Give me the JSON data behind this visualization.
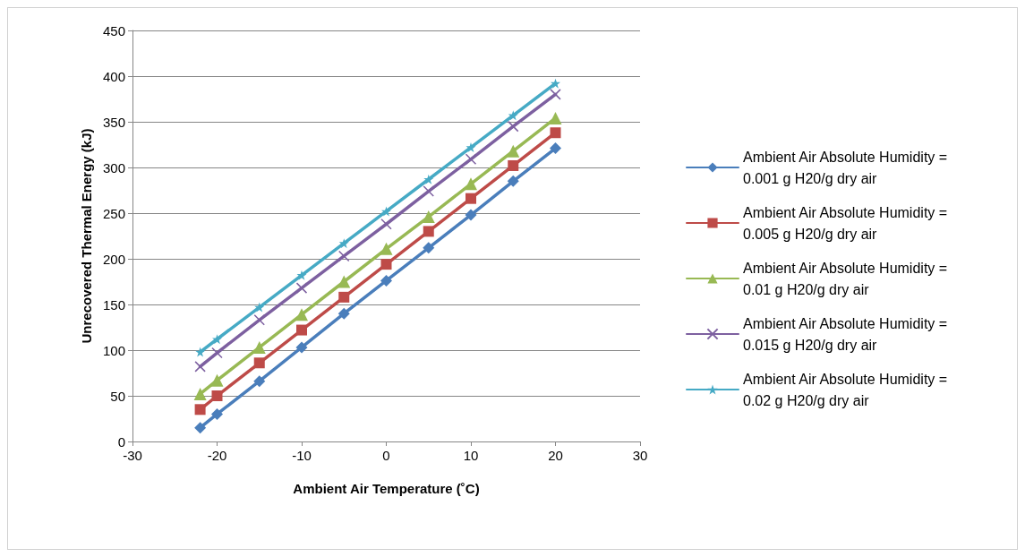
{
  "chart_data": {
    "type": "line",
    "xlabel": "Ambient Air Temperature (˚C)",
    "ylabel": "Unrecovered Thermal Energy (kJ)",
    "x": [
      -22,
      -20,
      -15,
      -10,
      -5,
      0,
      5,
      10,
      15,
      20
    ],
    "series": [
      {
        "name": "Ambient Air Absolute Humidity = 0.001 g H20/g dry air",
        "color": "#4a7ebb",
        "marker": "diamond",
        "values": [
          15,
          30,
          66,
          103,
          140,
          176,
          212,
          248,
          285,
          321
        ]
      },
      {
        "name": "Ambient Air Absolute Humidity = 0.005 g H20/g dry air",
        "color": "#be4b48",
        "marker": "square",
        "values": [
          35,
          50,
          86,
          122,
          158,
          194,
          230,
          266,
          302,
          338
        ]
      },
      {
        "name": "Ambient Air Absolute Humidity = 0.01 g H20/g dry air",
        "color": "#98b954",
        "marker": "triangle",
        "values": [
          52,
          67,
          103,
          139,
          175,
          211,
          246,
          282,
          318,
          354
        ]
      },
      {
        "name": "Ambient Air Absolute Humidity = 0.015 g H20/g dry air",
        "color": "#7d60a0",
        "marker": "cross",
        "values": [
          82,
          97,
          133,
          168,
          203,
          238,
          274,
          309,
          345,
          380
        ]
      },
      {
        "name": "Ambient Air Absolute Humidity = 0.02 g H20/g dry air",
        "color": "#46aac5",
        "marker": "star",
        "values": [
          98,
          112,
          147,
          182,
          217,
          252,
          287,
          322,
          357,
          392
        ]
      }
    ],
    "xlim": [
      -30,
      30
    ],
    "xticks": [
      -30,
      -20,
      -10,
      0,
      10,
      20,
      30
    ],
    "ylim": [
      0,
      450
    ],
    "yticks": [
      0,
      50,
      100,
      150,
      200,
      250,
      300,
      350,
      400,
      450
    ],
    "grid": "y",
    "legend": "right",
    "line_style": "solid"
  }
}
